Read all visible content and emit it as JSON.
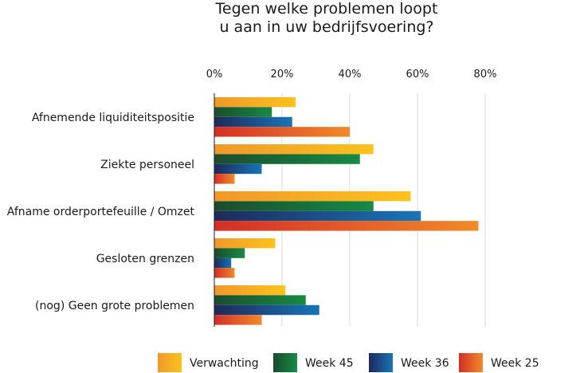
{
  "chart_data": {
    "type": "bar",
    "orientation": "horizontal",
    "title": "Tegen welke problemen loopt\nu aan in uw bedrijfsvoering?",
    "categories": [
      "Afnemende liquiditeitspositie",
      "Ziekte personeel",
      "Afname orderportefeuille / Omzet",
      "Gesloten grenzen",
      "(nog) Geen grote problemen"
    ],
    "series": [
      {
        "name": "Verwachting",
        "values": [
          24,
          47,
          58,
          18,
          21
        ],
        "colors": [
          "#f0982a",
          "#fcc21d"
        ]
      },
      {
        "name": "Week 45",
        "values": [
          17,
          43,
          47,
          9,
          27
        ],
        "colors": [
          "#1a4d2e",
          "#178a45"
        ]
      },
      {
        "name": "Week 36",
        "values": [
          23,
          14,
          61,
          5,
          31
        ],
        "colors": [
          "#1e2a5a",
          "#1874b8"
        ]
      },
      {
        "name": "Week 25",
        "values": [
          40,
          6,
          78,
          6,
          14
        ],
        "colors": [
          "#d42e26",
          "#f08a2a"
        ]
      }
    ],
    "xaxis": {
      "min": 0,
      "max": 80,
      "ticks": [
        "0%",
        "20%",
        "40%",
        "60%",
        "80%"
      ],
      "position": "top"
    },
    "grid": true,
    "legend": "bottom"
  }
}
